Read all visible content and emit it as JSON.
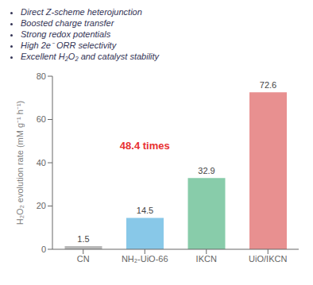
{
  "chart_data": {
    "type": "bar",
    "categories": [
      "CN",
      "NH₂-UiO-66",
      "IKCN",
      "UiO/IKCN"
    ],
    "values": [
      1.5,
      14.5,
      32.9,
      72.6
    ],
    "colors": [
      "#b8b8b8",
      "#88c8e8",
      "#88ccaa",
      "#e89090"
    ],
    "ylabel": "H₂O₂ evolution rate (mM g⁻¹ h⁻¹)",
    "ylim": [
      0,
      80
    ],
    "yticks": [
      0,
      20,
      40,
      60,
      80
    ],
    "data_labels": true,
    "grid": false,
    "annotations": [
      "48.4 times",
      "Direct Z-scheme heterojunction",
      "Boosted charge transfer",
      "Strong redox potentials",
      "High 2e⁻ ORR selectivity",
      "Excellent H₂O₂ and catalyst stability"
    ]
  }
}
